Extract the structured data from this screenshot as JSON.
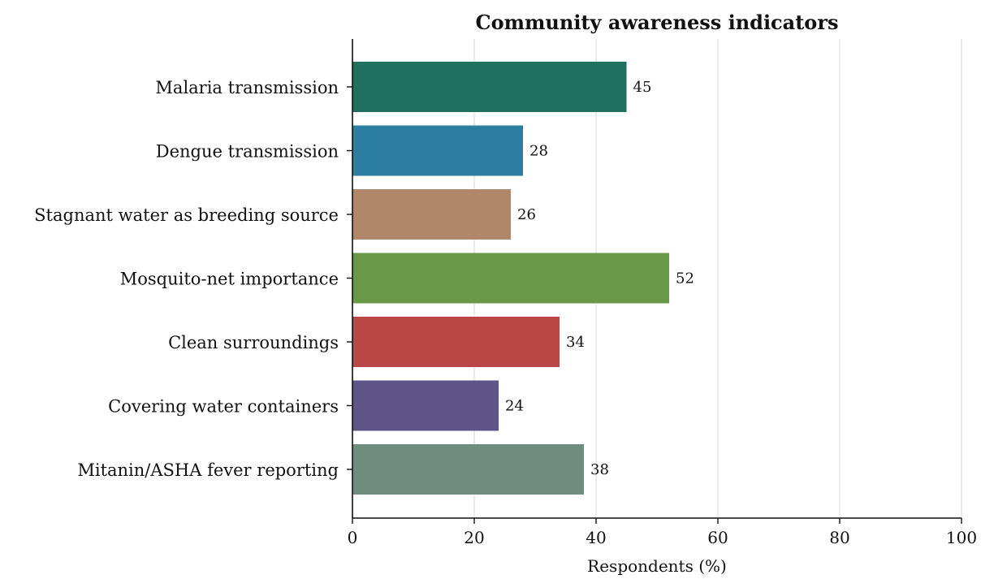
{
  "chart_data": {
    "type": "bar",
    "orientation": "horizontal",
    "title": "Community awareness indicators",
    "xlabel": "Respondents (%)",
    "ylabel": "",
    "xlim": [
      0,
      100
    ],
    "x_ticks": [
      0,
      20,
      40,
      60,
      80,
      100
    ],
    "grid": "vertical",
    "legend": "none",
    "categories": [
      "Malaria transmission",
      "Dengue transmission",
      "Stagnant water as breeding source",
      "Mosquito-net importance",
      "Clean surroundings",
      "Covering water containers",
      "Mitanin/ASHA fever reporting"
    ],
    "values": [
      45,
      28,
      26,
      52,
      34,
      24,
      38
    ],
    "colors": [
      "#20705e",
      "#2b7ea1",
      "#b08768",
      "#699849",
      "#ba4646",
      "#5e548a",
      "#6f8d7e"
    ]
  }
}
